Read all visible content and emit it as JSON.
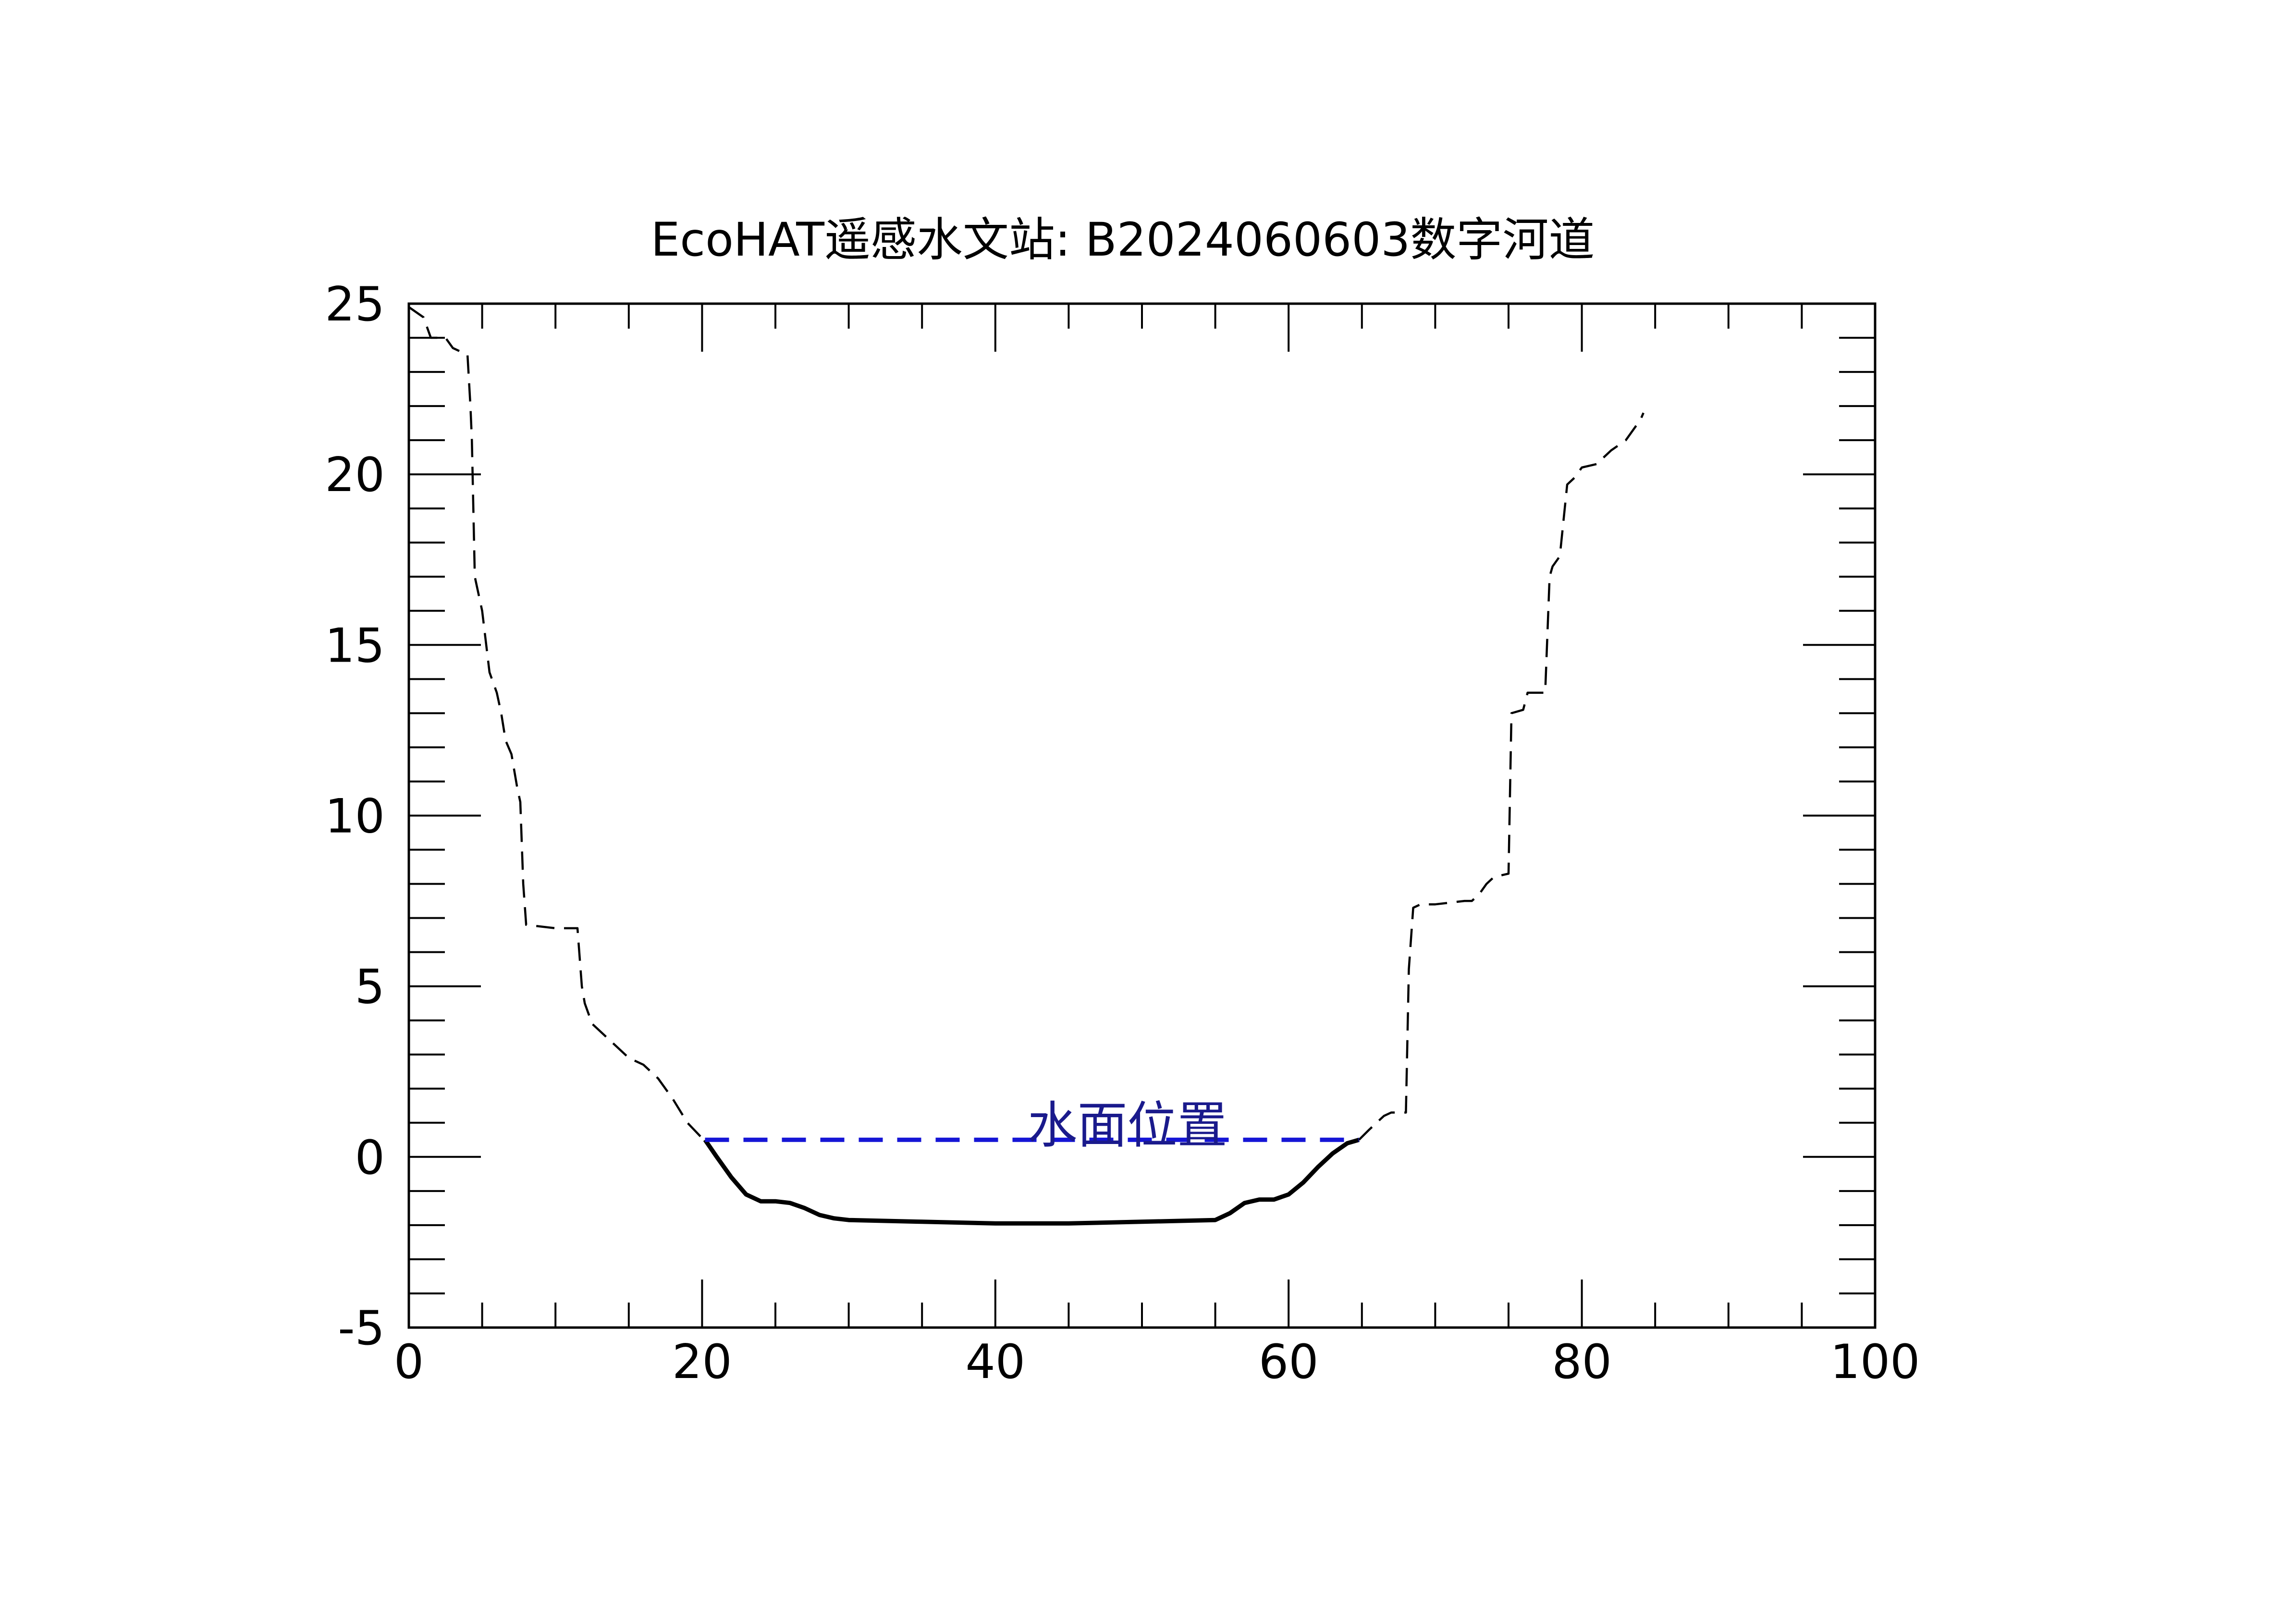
{
  "chart_data": {
    "type": "line",
    "title": "EcoHAT遥感水文站: B2024060603数字河道",
    "xlabel": "",
    "ylabel": "",
    "xlim": [
      0,
      100
    ],
    "ylim": [
      -5,
      25
    ],
    "x_ticks": [
      0,
      20,
      40,
      60,
      80,
      100
    ],
    "y_ticks": [
      -5,
      0,
      5,
      10,
      15,
      20,
      25
    ],
    "x_tick_labels": [
      "0",
      "20",
      "40",
      "60",
      "80",
      "100"
    ],
    "y_tick_labels": [
      "-5",
      "0",
      "5",
      "10",
      "15",
      "20",
      "25"
    ],
    "grid": false,
    "annotation": {
      "text": "水面位置",
      "x": 49,
      "y": 0.7
    },
    "colors": {
      "terrain": "#000000",
      "channel": "#000000",
      "water": "#1515d6",
      "annotation": "#1a1a8c"
    },
    "series": [
      {
        "style": "dashed",
        "x": [
          0,
          1,
          1.5,
          2,
          2.5,
          3,
          3.5,
          4,
          4.2,
          4.3,
          4.5,
          5,
          5.5,
          6,
          6.3,
          6.6,
          7,
          7.4,
          7.6,
          7.8,
          8,
          10,
          11.5,
          11.8,
          12,
          12.5,
          13,
          13.5,
          14,
          15,
          16,
          17,
          18,
          19,
          20,
          20.2
        ],
        "y": [
          24.9,
          24.6,
          24.0,
          24.0,
          24.0,
          23.7,
          23.6,
          23.5,
          22.0,
          21.0,
          17.0,
          16.0,
          14.2,
          13.6,
          13.0,
          12.2,
          11.8,
          10.8,
          10.4,
          8.0,
          6.8,
          6.7,
          6.7,
          5.0,
          4.5,
          3.9,
          3.7,
          3.5,
          3.3,
          2.9,
          2.7,
          2.3,
          1.7,
          1.0,
          0.55,
          0.5
        ]
      },
      {
        "style": "solid",
        "x": [
          20.2,
          21,
          22,
          23,
          24,
          25,
          26,
          27,
          28,
          29,
          30,
          35,
          40,
          45,
          50,
          55,
          56,
          57,
          58,
          59,
          60,
          61,
          62,
          63,
          64,
          64.8
        ],
        "y": [
          0.5,
          0.0,
          -0.6,
          -1.1,
          -1.3,
          -1.3,
          -1.35,
          -1.5,
          -1.7,
          -1.8,
          -1.85,
          -1.9,
          -1.95,
          -1.95,
          -1.9,
          -1.85,
          -1.65,
          -1.35,
          -1.25,
          -1.25,
          -1.1,
          -0.75,
          -0.3,
          0.1,
          0.4,
          0.5
        ]
      },
      {
        "style": "dashed",
        "x": [
          64.8,
          65.5,
          66,
          66.5,
          67,
          67.5,
          68,
          68.2,
          68.5,
          69,
          70,
          72,
          72.5,
          73,
          73.5,
          74,
          75,
          75.2,
          76,
          76.3,
          77,
          77.5,
          77.8,
          78,
          78.5,
          79,
          79.5,
          80,
          81,
          82,
          83,
          83.5,
          84,
          84.2
        ],
        "y": [
          0.5,
          0.8,
          1.0,
          1.2,
          1.3,
          1.3,
          1.3,
          5.5,
          7.3,
          7.4,
          7.4,
          7.5,
          7.5,
          7.7,
          8.0,
          8.2,
          8.3,
          13.0,
          13.1,
          13.6,
          13.6,
          13.6,
          17.0,
          17.3,
          17.6,
          19.7,
          19.9,
          20.2,
          20.3,
          20.7,
          21.0,
          21.3,
          21.6,
          21.8
        ]
      },
      {
        "style": "water",
        "x": [
          20.2,
          64.8
        ],
        "y": [
          0.5,
          0.5
        ]
      }
    ]
  }
}
